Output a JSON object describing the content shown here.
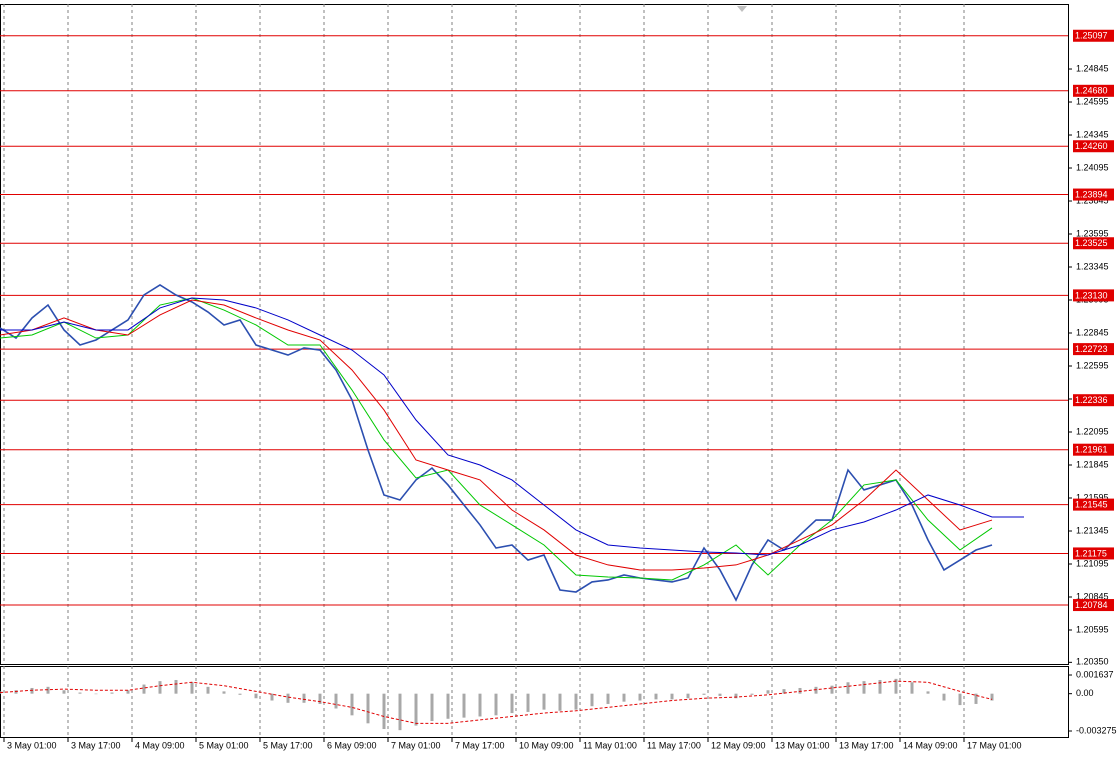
{
  "chart_data": [
    {
      "type": "line",
      "xlim": [
        0,
        66.75
      ],
      "ylim": [
        1.20345,
        1.2533
      ],
      "yticks": [
        1.24845,
        1.24595,
        1.24345,
        1.24095,
        1.23845,
        1.23595,
        1.23345,
        1.23095,
        1.22845,
        1.22595,
        1.22345,
        1.22095,
        1.21845,
        1.21595,
        1.21345,
        1.21095,
        1.20845,
        1.20595,
        {
          "value": 1.2035,
          "label": "1.20350"
        }
      ],
      "xticks": [
        {
          "value": 0.25,
          "label": "3 May 01:00"
        },
        {
          "value": 4.25,
          "label": "3 May 17:00"
        },
        {
          "value": 8.25,
          "label": "4 May 09:00"
        },
        {
          "value": 12.25,
          "label": "5 May 01:00"
        },
        {
          "value": 16.25,
          "label": "5 May 17:00"
        },
        {
          "value": 20.25,
          "label": "6 May 09:00"
        },
        {
          "value": 24.25,
          "label": "7 May 01:00"
        },
        {
          "value": 28.25,
          "label": "7 May 17:00"
        },
        {
          "value": 32.25,
          "label": "10 May 09:00"
        },
        {
          "value": 36.25,
          "label": "11 May 01:00"
        },
        {
          "value": 40.25,
          "label": "11 May 17:00"
        },
        {
          "value": 44.25,
          "label": "12 May 09:00"
        },
        {
          "value": 48.25,
          "label": "13 May 01:00"
        },
        {
          "value": 52.25,
          "label": "13 May 17:00"
        },
        {
          "value": 56.25,
          "label": "14 May 09:00"
        },
        {
          "value": 60.25,
          "label": "17 May 01:00"
        }
      ],
      "grid": true,
      "level_color": "#e00000",
      "levels": [
        1.25097,
        {
          "value": 1.2468,
          "label": "1.24680"
        },
        {
          "value": 1.2426,
          "label": "1.24260"
        },
        1.23894,
        1.23525,
        {
          "value": 1.2313,
          "label": "1.23130"
        },
        1.22723,
        1.22336,
        1.21961,
        1.21545,
        1.21175,
        1.20784
      ],
      "series": [
        {
          "color": "#2c4fb0",
          "width": 1.6,
          "values": [
            1.22883,
            1.22807,
            1.22959,
            1.23057,
            1.22868,
            1.22754,
            1.22792,
            1.22868,
            1.22944,
            1.23133,
            1.23209,
            1.23133,
            1.2308,
            1.23004,
            1.22906,
            1.22944,
            1.22754,
            1.22716,
            1.22678,
            1.22732,
            1.22716,
            1.22565,
            1.22338,
            1.21959,
            1.21618,
            1.2158,
            1.21732,
            1.21822,
            1.21694,
            1.21542,
            1.21391,
            1.21216,
            1.21239,
            1.21125,
            1.21163,
            1.20898,
            1.20883,
            1.20959,
            1.20974,
            1.21012,
            1.20989,
            1.20974,
            1.20959,
            1.20989,
            1.21216,
            1.2105,
            1.20822,
            1.21088,
            1.21277,
            1.21201,
            1.21315,
            1.21428,
            1.21428,
            1.21807,
            1.21656,
            1.21694,
            1.21732,
            1.21542,
            1.21277,
            1.2105,
            1.21125,
            1.21201,
            1.21239
          ]
        },
        {
          "color": "#00c800",
          "width": 1,
          "x": [
            0,
            2,
            4,
            6,
            8,
            10,
            12,
            14,
            16,
            18,
            20,
            22,
            24,
            26,
            28,
            30,
            32,
            34,
            36,
            38,
            40,
            42,
            44,
            46,
            48,
            50,
            52,
            54,
            56,
            58,
            60,
            62
          ],
          "values": [
            1.22807,
            1.2283,
            1.22928,
            1.22807,
            1.2283,
            1.23057,
            1.2311,
            1.23019,
            1.22906,
            1.22754,
            1.22754,
            1.22413,
            1.22035,
            1.21747,
            1.21807,
            1.21542,
            1.21391,
            1.21239,
            1.21012,
            1.20997,
            1.20989,
            1.20974,
            1.21088,
            1.21239,
            1.21012,
            1.21239,
            1.21428,
            1.21694,
            1.21732,
            1.21428,
            1.21201,
            1.21368
          ]
        },
        {
          "color": "#e00000",
          "width": 1,
          "x": [
            0,
            2,
            4,
            6,
            8,
            10,
            12,
            14,
            16,
            18,
            20,
            22,
            24,
            26,
            28,
            30,
            32,
            34,
            36,
            38,
            40,
            42,
            44,
            46,
            48,
            50,
            52,
            54,
            56,
            58,
            60,
            62
          ],
          "values": [
            1.2283,
            1.22868,
            1.22959,
            1.22868,
            1.2283,
            1.22982,
            1.23095,
            1.23057,
            1.22959,
            1.22868,
            1.22792,
            1.22565,
            1.22262,
            1.21883,
            1.21807,
            1.21732,
            1.21504,
            1.21353,
            1.21163,
            1.21088,
            1.2105,
            1.2105,
            1.21065,
            1.21088,
            1.21163,
            1.21277,
            1.21391,
            1.2158,
            1.21807,
            1.2158,
            1.21353,
            1.21428
          ]
        },
        {
          "color": "#0000c8",
          "width": 1,
          "x": [
            0,
            2,
            4,
            6,
            8,
            10,
            12,
            14,
            16,
            18,
            20,
            22,
            24,
            26,
            28,
            30,
            32,
            34,
            36,
            38,
            40,
            42,
            44,
            46,
            48,
            50,
            52,
            54,
            56,
            58,
            60,
            62,
            64
          ],
          "values": [
            1.22868,
            1.22868,
            1.22928,
            1.22868,
            1.22868,
            1.23035,
            1.2311,
            1.23095,
            1.23035,
            1.22944,
            1.2283,
            1.22716,
            1.22527,
            1.22186,
            1.21921,
            1.21845,
            1.21732,
            1.21542,
            1.21353,
            1.21239,
            1.21216,
            1.21201,
            1.21186,
            1.21178,
            1.21163,
            1.21239,
            1.21353,
            1.21413,
            1.21504,
            1.21618,
            1.21542,
            1.21451,
            1.21451
          ]
        }
      ]
    },
    {
      "type": "bar",
      "xlim": [
        0,
        66.75
      ],
      "ylim": [
        -0.0038,
        0.00234
      ],
      "yticks": [
        0.001637,
        {
          "value": 0,
          "label": "0.00"
        },
        -0.003275
      ],
      "series": [
        {
          "type": "bar",
          "color": "#a8a8a8",
          "values": [
            0.0002,
            0.0003,
            0.0005,
            0.0006,
            0.0003,
            0.0001,
            0.0,
            0.0001,
            0.0003,
            0.0008,
            0.0011,
            0.0012,
            0.001,
            0.0006,
            0.0002,
            -0.0001,
            -0.0004,
            -0.0006,
            -0.0008,
            -0.0008,
            -0.0009,
            -0.0013,
            -0.0019,
            -0.0026,
            -0.0031,
            -0.0032,
            -0.0028,
            -0.0024,
            -0.0022,
            -0.0021,
            -0.002,
            -0.0019,
            -0.0017,
            -0.0016,
            -0.0014,
            -0.0015,
            -0.0014,
            -0.0011,
            -0.0009,
            -0.0007,
            -0.0006,
            -0.0005,
            -0.0005,
            -0.0004,
            -0.0001,
            -0.0002,
            -0.0004,
            -0.0001,
            0.0003,
            0.0004,
            0.0005,
            0.0006,
            0.0007,
            0.001,
            0.0011,
            0.0012,
            0.0013,
            0.001,
            0.0002,
            -0.0006,
            -0.001,
            -0.0009,
            -0.0006
          ]
        },
        {
          "type": "line",
          "color": "#e00000",
          "dashed": true,
          "x": [
            0,
            2,
            4,
            6,
            8,
            10,
            12,
            14,
            16,
            18,
            20,
            22,
            24,
            26,
            28,
            30,
            32,
            34,
            36,
            38,
            40,
            42,
            44,
            46,
            48,
            50,
            52,
            54,
            56,
            58,
            60,
            62
          ],
          "values": [
            0.0001,
            0.0003,
            0.0004,
            0.0003,
            0.0003,
            0.0007,
            0.001,
            0.0007,
            0.0002,
            -0.0003,
            -0.0007,
            -0.0012,
            -0.002,
            -0.0026,
            -0.0026,
            -0.0023,
            -0.002,
            -0.0017,
            -0.0015,
            -0.0012,
            -0.0009,
            -0.0006,
            -0.0004,
            -0.0003,
            -0.0001,
            0.0002,
            0.0005,
            0.0008,
            0.0011,
            0.001,
            0.0002,
            -0.0005
          ]
        }
      ]
    }
  ]
}
